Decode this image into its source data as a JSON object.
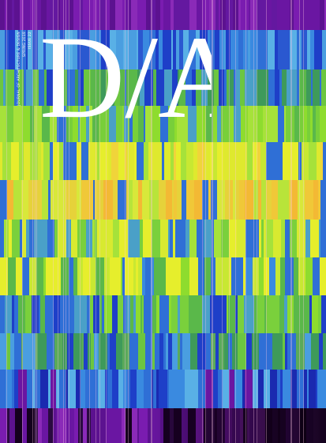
{
  "cover": {
    "masthead": "D/A",
    "spine_lines": [
      "JOURNAL OF ARCHITECTURE & DESIGN",
      "SPRING 2019",
      "ISSUE 22"
    ]
  },
  "palette": {
    "top": "#6b1aa5",
    "blue": "#2f6fd6",
    "lightblue": "#59b0e6",
    "green": "#78cf3a",
    "yellow": "#e6ee2c",
    "orange": "#f3b934",
    "purple": "#6a16a2"
  }
}
